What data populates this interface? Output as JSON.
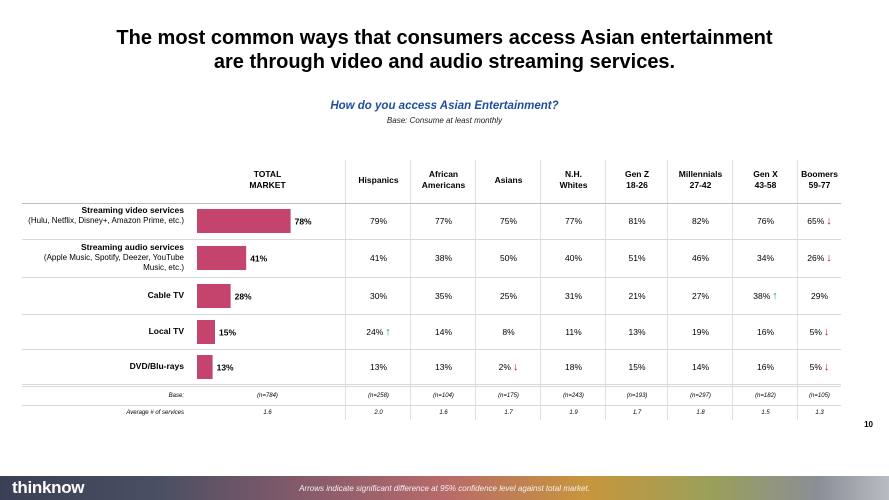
{
  "title_line1": "The most common ways that consumers access Asian entertainment",
  "title_line2": "are through video and audio streaming services.",
  "subtitle": "How do you access Asian Entertainment?",
  "base_note": "Base: Consume at least monthly",
  "columns": [
    {
      "line1": "TOTAL",
      "line2": "MARKET"
    },
    {
      "line1": "Hispanics",
      "line2": ""
    },
    {
      "line1": "African",
      "line2": "Americans"
    },
    {
      "line1": "Asians",
      "line2": ""
    },
    {
      "line1": "N.H.",
      "line2": "Whites"
    },
    {
      "line1": "Gen Z",
      "line2": "18-26"
    },
    {
      "line1": "Millennials",
      "line2": "27-42"
    },
    {
      "line1": "Gen X",
      "line2": "43-58"
    },
    {
      "line1": "Boomers",
      "line2": "59-77"
    }
  ],
  "rows": [
    {
      "label": "Streaming video services",
      "sublabel": "(Hulu, Netflix, Disney+, Amazon Prime, etc.)",
      "cells": [
        {
          "v": "79%",
          "a": ""
        },
        {
          "v": "77%",
          "a": ""
        },
        {
          "v": "75%",
          "a": ""
        },
        {
          "v": "77%",
          "a": ""
        },
        {
          "v": "81%",
          "a": ""
        },
        {
          "v": "82%",
          "a": ""
        },
        {
          "v": "76%",
          "a": ""
        },
        {
          "v": "65%",
          "a": "down"
        }
      ]
    },
    {
      "label": "Streaming audio services",
      "sublabel": "(Apple Music, Spotify, Deezer, YouTube Music, etc.)",
      "cells": [
        {
          "v": "41%",
          "a": ""
        },
        {
          "v": "38%",
          "a": ""
        },
        {
          "v": "50%",
          "a": ""
        },
        {
          "v": "40%",
          "a": ""
        },
        {
          "v": "51%",
          "a": ""
        },
        {
          "v": "46%",
          "a": ""
        },
        {
          "v": "34%",
          "a": ""
        },
        {
          "v": "26%",
          "a": "down"
        }
      ]
    },
    {
      "label": "Cable TV",
      "sublabel": "",
      "cells": [
        {
          "v": "30%",
          "a": ""
        },
        {
          "v": "35%",
          "a": ""
        },
        {
          "v": "25%",
          "a": ""
        },
        {
          "v": "31%",
          "a": ""
        },
        {
          "v": "21%",
          "a": ""
        },
        {
          "v": "27%",
          "a": ""
        },
        {
          "v": "38%",
          "a": "up"
        },
        {
          "v": "29%",
          "a": ""
        }
      ]
    },
    {
      "label": "Local TV",
      "sublabel": "",
      "cells": [
        {
          "v": "24%",
          "a": "up"
        },
        {
          "v": "14%",
          "a": ""
        },
        {
          "v": "8%",
          "a": ""
        },
        {
          "v": "11%",
          "a": ""
        },
        {
          "v": "13%",
          "a": ""
        },
        {
          "v": "19%",
          "a": ""
        },
        {
          "v": "16%",
          "a": ""
        },
        {
          "v": "5%",
          "a": "down"
        }
      ]
    },
    {
      "label": "DVD/Blu-rays",
      "sublabel": "",
      "cells": [
        {
          "v": "13%",
          "a": ""
        },
        {
          "v": "13%",
          "a": ""
        },
        {
          "v": "2%",
          "a": "down"
        },
        {
          "v": "18%",
          "a": ""
        },
        {
          "v": "15%",
          "a": ""
        },
        {
          "v": "14%",
          "a": ""
        },
        {
          "v": "16%",
          "a": ""
        },
        {
          "v": "5%",
          "a": "down"
        }
      ]
    }
  ],
  "base_row": {
    "label": "Base:",
    "values": [
      "(n=784)",
      "(n=258)",
      "(n=104)",
      "(n=175)",
      "(n=243)",
      "(n=193)",
      "(n=297)",
      "(n=182)",
      "(n=105)"
    ]
  },
  "avg_row": {
    "label": "Average # of services",
    "values": [
      "1.6",
      "2.0",
      "1.6",
      "1.7",
      "1.9",
      "1.7",
      "1.8",
      "1.5",
      "1.3"
    ]
  },
  "page_number": "10",
  "footnote": "Arrows indicate significant difference at 95% confidence level against total market.",
  "logo": "thinknow",
  "colors": {
    "bar": "#c4446e",
    "subtitle": "#1f4e9e",
    "up": "#2e9e3e",
    "down": "#c0141d"
  },
  "chart_data": {
    "type": "bar",
    "orientation": "horizontal",
    "title": "How do you access Asian Entertainment?",
    "series_name": "TOTAL MARKET",
    "categories": [
      "Streaming video services",
      "Streaming audio services",
      "Cable TV",
      "Local TV",
      "DVD/Blu-rays"
    ],
    "values": [
      78,
      41,
      28,
      15,
      13
    ],
    "labels": [
      "78%",
      "41%",
      "28%",
      "15%",
      "13%"
    ],
    "xlim": [
      0,
      100
    ],
    "unit": "%"
  }
}
